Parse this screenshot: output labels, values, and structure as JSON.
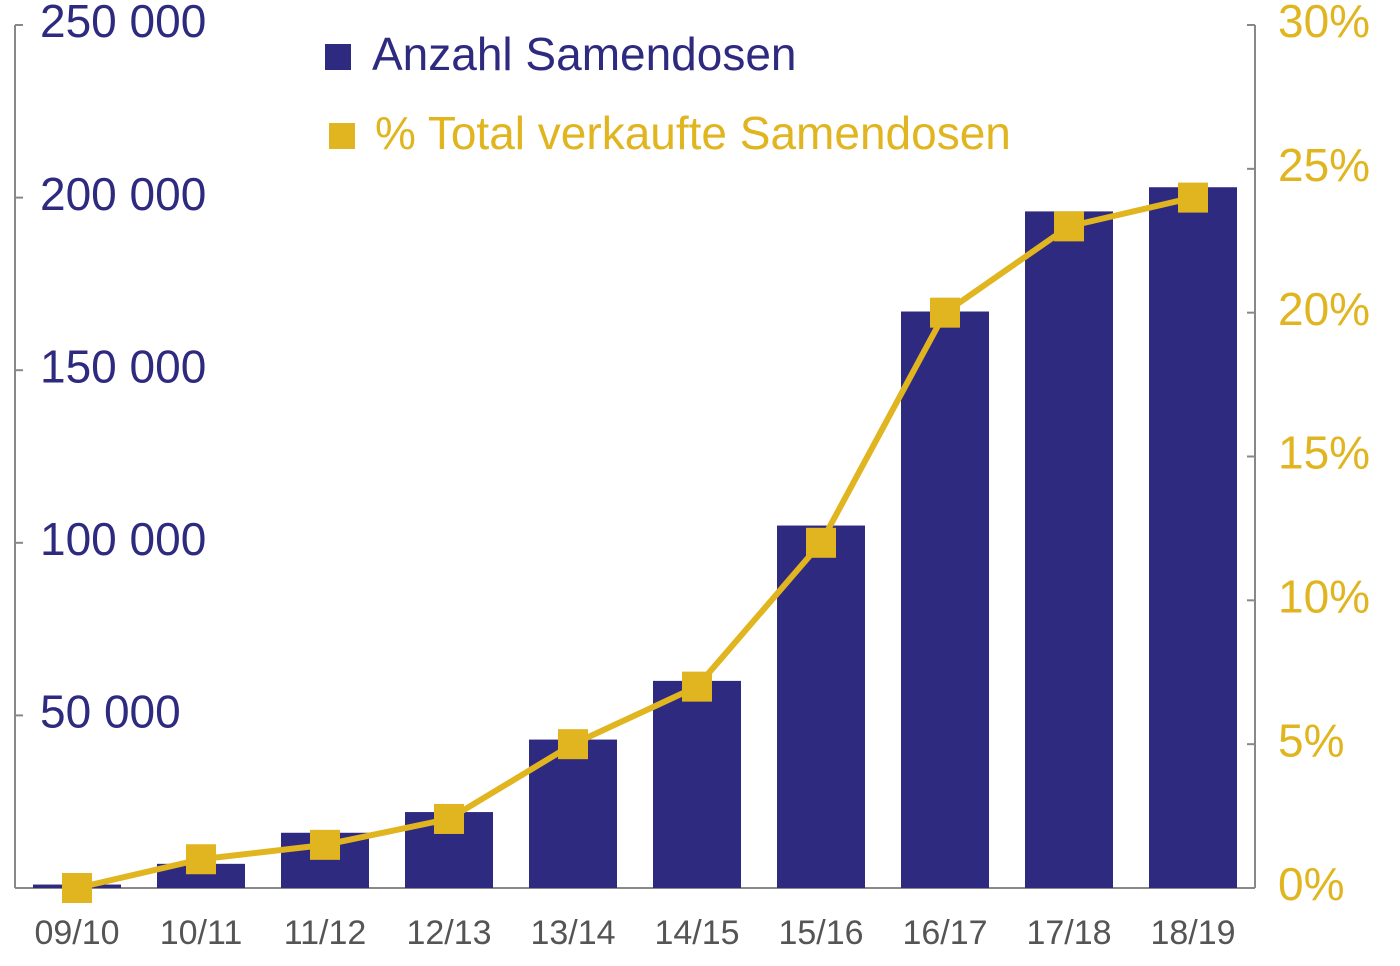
{
  "chart_data": {
    "type": "bar-line",
    "categories": [
      "09/10",
      "10/11",
      "11/12",
      "12/13",
      "13/14",
      "14/15",
      "15/16",
      "16/17",
      "17/18",
      "18/19"
    ],
    "series": [
      {
        "name": "Anzahl Samendosen",
        "color": "#2e2a7f",
        "type": "bar",
        "values": [
          1000,
          7000,
          16000,
          22000,
          43000,
          60000,
          105000,
          167000,
          196000,
          203000
        ]
      },
      {
        "name": "% Total verkaufte Samendosen",
        "color": "#e0b520",
        "type": "line",
        "axis": "y2",
        "values": [
          0,
          1,
          1.5,
          2.4,
          5,
          7,
          12,
          20,
          23,
          24
        ]
      }
    ],
    "ylim": [
      0,
      250000
    ],
    "yticks": [
      {
        "value": 50000,
        "label": "50 000"
      },
      {
        "value": 100000,
        "label": "100 000"
      },
      {
        "value": 150000,
        "label": "150 000"
      },
      {
        "value": 200000,
        "label": "200 000"
      },
      {
        "value": 250000,
        "label": "250 000"
      }
    ],
    "y2lim": [
      0,
      30
    ],
    "y2ticks": [
      {
        "value": 0,
        "label": "0%"
      },
      {
        "value": 5,
        "label": "5%"
      },
      {
        "value": 10,
        "label": "10%"
      },
      {
        "value": 15,
        "label": "15%"
      },
      {
        "value": 20,
        "label": "20%"
      },
      {
        "value": 25,
        "label": "25%"
      },
      {
        "value": 30,
        "label": "30%"
      }
    ],
    "legend": "top"
  }
}
